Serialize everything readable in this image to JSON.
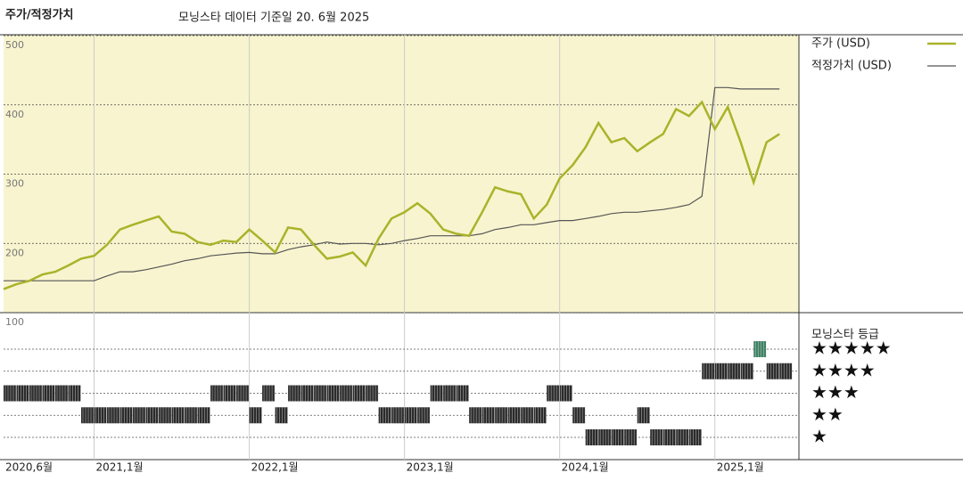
{
  "chart_data": {
    "type": "line",
    "title": "주가/적정가치",
    "subtitle": "모닝스타 데이터 기준일 20. 6월 2025",
    "x": [
      "2020-06",
      "2020-07",
      "2020-08",
      "2020-09",
      "2020-10",
      "2020-11",
      "2020-12",
      "2021-01",
      "2021-02",
      "2021-03",
      "2021-04",
      "2021-05",
      "2021-06",
      "2021-07",
      "2021-08",
      "2021-09",
      "2021-10",
      "2021-11",
      "2021-12",
      "2022-01",
      "2022-02",
      "2022-03",
      "2022-04",
      "2022-05",
      "2022-06",
      "2022-07",
      "2022-08",
      "2022-09",
      "2022-10",
      "2022-11",
      "2022-12",
      "2023-01",
      "2023-02",
      "2023-03",
      "2023-04",
      "2023-05",
      "2023-06",
      "2023-07",
      "2023-08",
      "2023-09",
      "2023-10",
      "2023-11",
      "2023-12",
      "2024-01",
      "2024-02",
      "2024-03",
      "2024-04",
      "2024-05",
      "2024-06",
      "2024-07",
      "2024-08",
      "2024-09",
      "2024-10",
      "2024-11",
      "2024-12",
      "2025-01",
      "2025-02",
      "2025-03",
      "2025-04",
      "2025-05",
      "2025-06"
    ],
    "xticks": [
      {
        "value": "2020-06",
        "label": "2020,6월"
      },
      {
        "value": "2021-01",
        "label": "2021,1월"
      },
      {
        "value": "2022-01",
        "label": "2022,1월"
      },
      {
        "value": "2023-01",
        "label": "2023,1월"
      },
      {
        "value": "2024-01",
        "label": "2024,1월"
      },
      {
        "value": "2025-01",
        "label": "2025,1월"
      }
    ],
    "series": [
      {
        "name": "주가 (USD)",
        "color": "#a9b32a",
        "width": 2.5,
        "values": [
          134,
          141,
          146,
          155,
          159,
          168,
          178,
          182,
          198,
          220,
          227,
          233,
          239,
          217,
          214,
          202,
          198,
          204,
          202,
          220,
          204,
          187,
          223,
          220,
          198,
          178,
          181,
          187,
          168,
          207,
          236,
          245,
          258,
          243,
          220,
          214,
          211,
          245,
          281,
          275,
          271,
          236,
          256,
          294,
          313,
          339,
          374,
          346,
          352,
          333,
          346,
          358,
          394,
          384,
          404,
          365,
          397,
          346,
          288,
          346,
          358
        ]
      },
      {
        "name": "적정가치 (USD)",
        "color": "#555555",
        "width": 1.2,
        "values": [
          146,
          146,
          146,
          146,
          146,
          146,
          146,
          146,
          153,
          159,
          159,
          162,
          166,
          170,
          175,
          178,
          182,
          184,
          186,
          187,
          185,
          185,
          191,
          195,
          198,
          202,
          199,
          200,
          200,
          198,
          200,
          204,
          207,
          211,
          211,
          211,
          211,
          214,
          220,
          223,
          227,
          227,
          230,
          233,
          233,
          236,
          239,
          243,
          245,
          245,
          247,
          249,
          252,
          256,
          268,
          425,
          425,
          423,
          423,
          423,
          423
        ]
      }
    ],
    "ylim": [
      100,
      500
    ],
    "yticks": [
      100,
      200,
      300,
      400,
      500
    ],
    "grid": true,
    "rating_title": "모닝스타 등급",
    "rating_labels": [
      "★",
      "★★",
      "★★★",
      "★★★★",
      "★★★★★"
    ],
    "ratings": [
      3,
      3,
      3,
      3,
      3,
      3,
      2,
      2,
      2,
      2,
      2,
      2,
      2,
      2,
      2,
      2,
      3,
      3,
      3,
      2,
      3,
      2,
      3,
      3,
      3,
      3,
      3,
      3,
      3,
      2,
      2,
      2,
      2,
      3,
      3,
      3,
      2,
      2,
      2,
      2,
      2,
      2,
      3,
      3,
      2,
      1,
      1,
      1,
      1,
      2,
      1,
      1,
      1,
      1,
      4,
      4,
      4,
      4,
      5,
      4,
      4
    ],
    "rating_color": "#2b2b2b",
    "top_rating_color": "#3f7f63"
  }
}
